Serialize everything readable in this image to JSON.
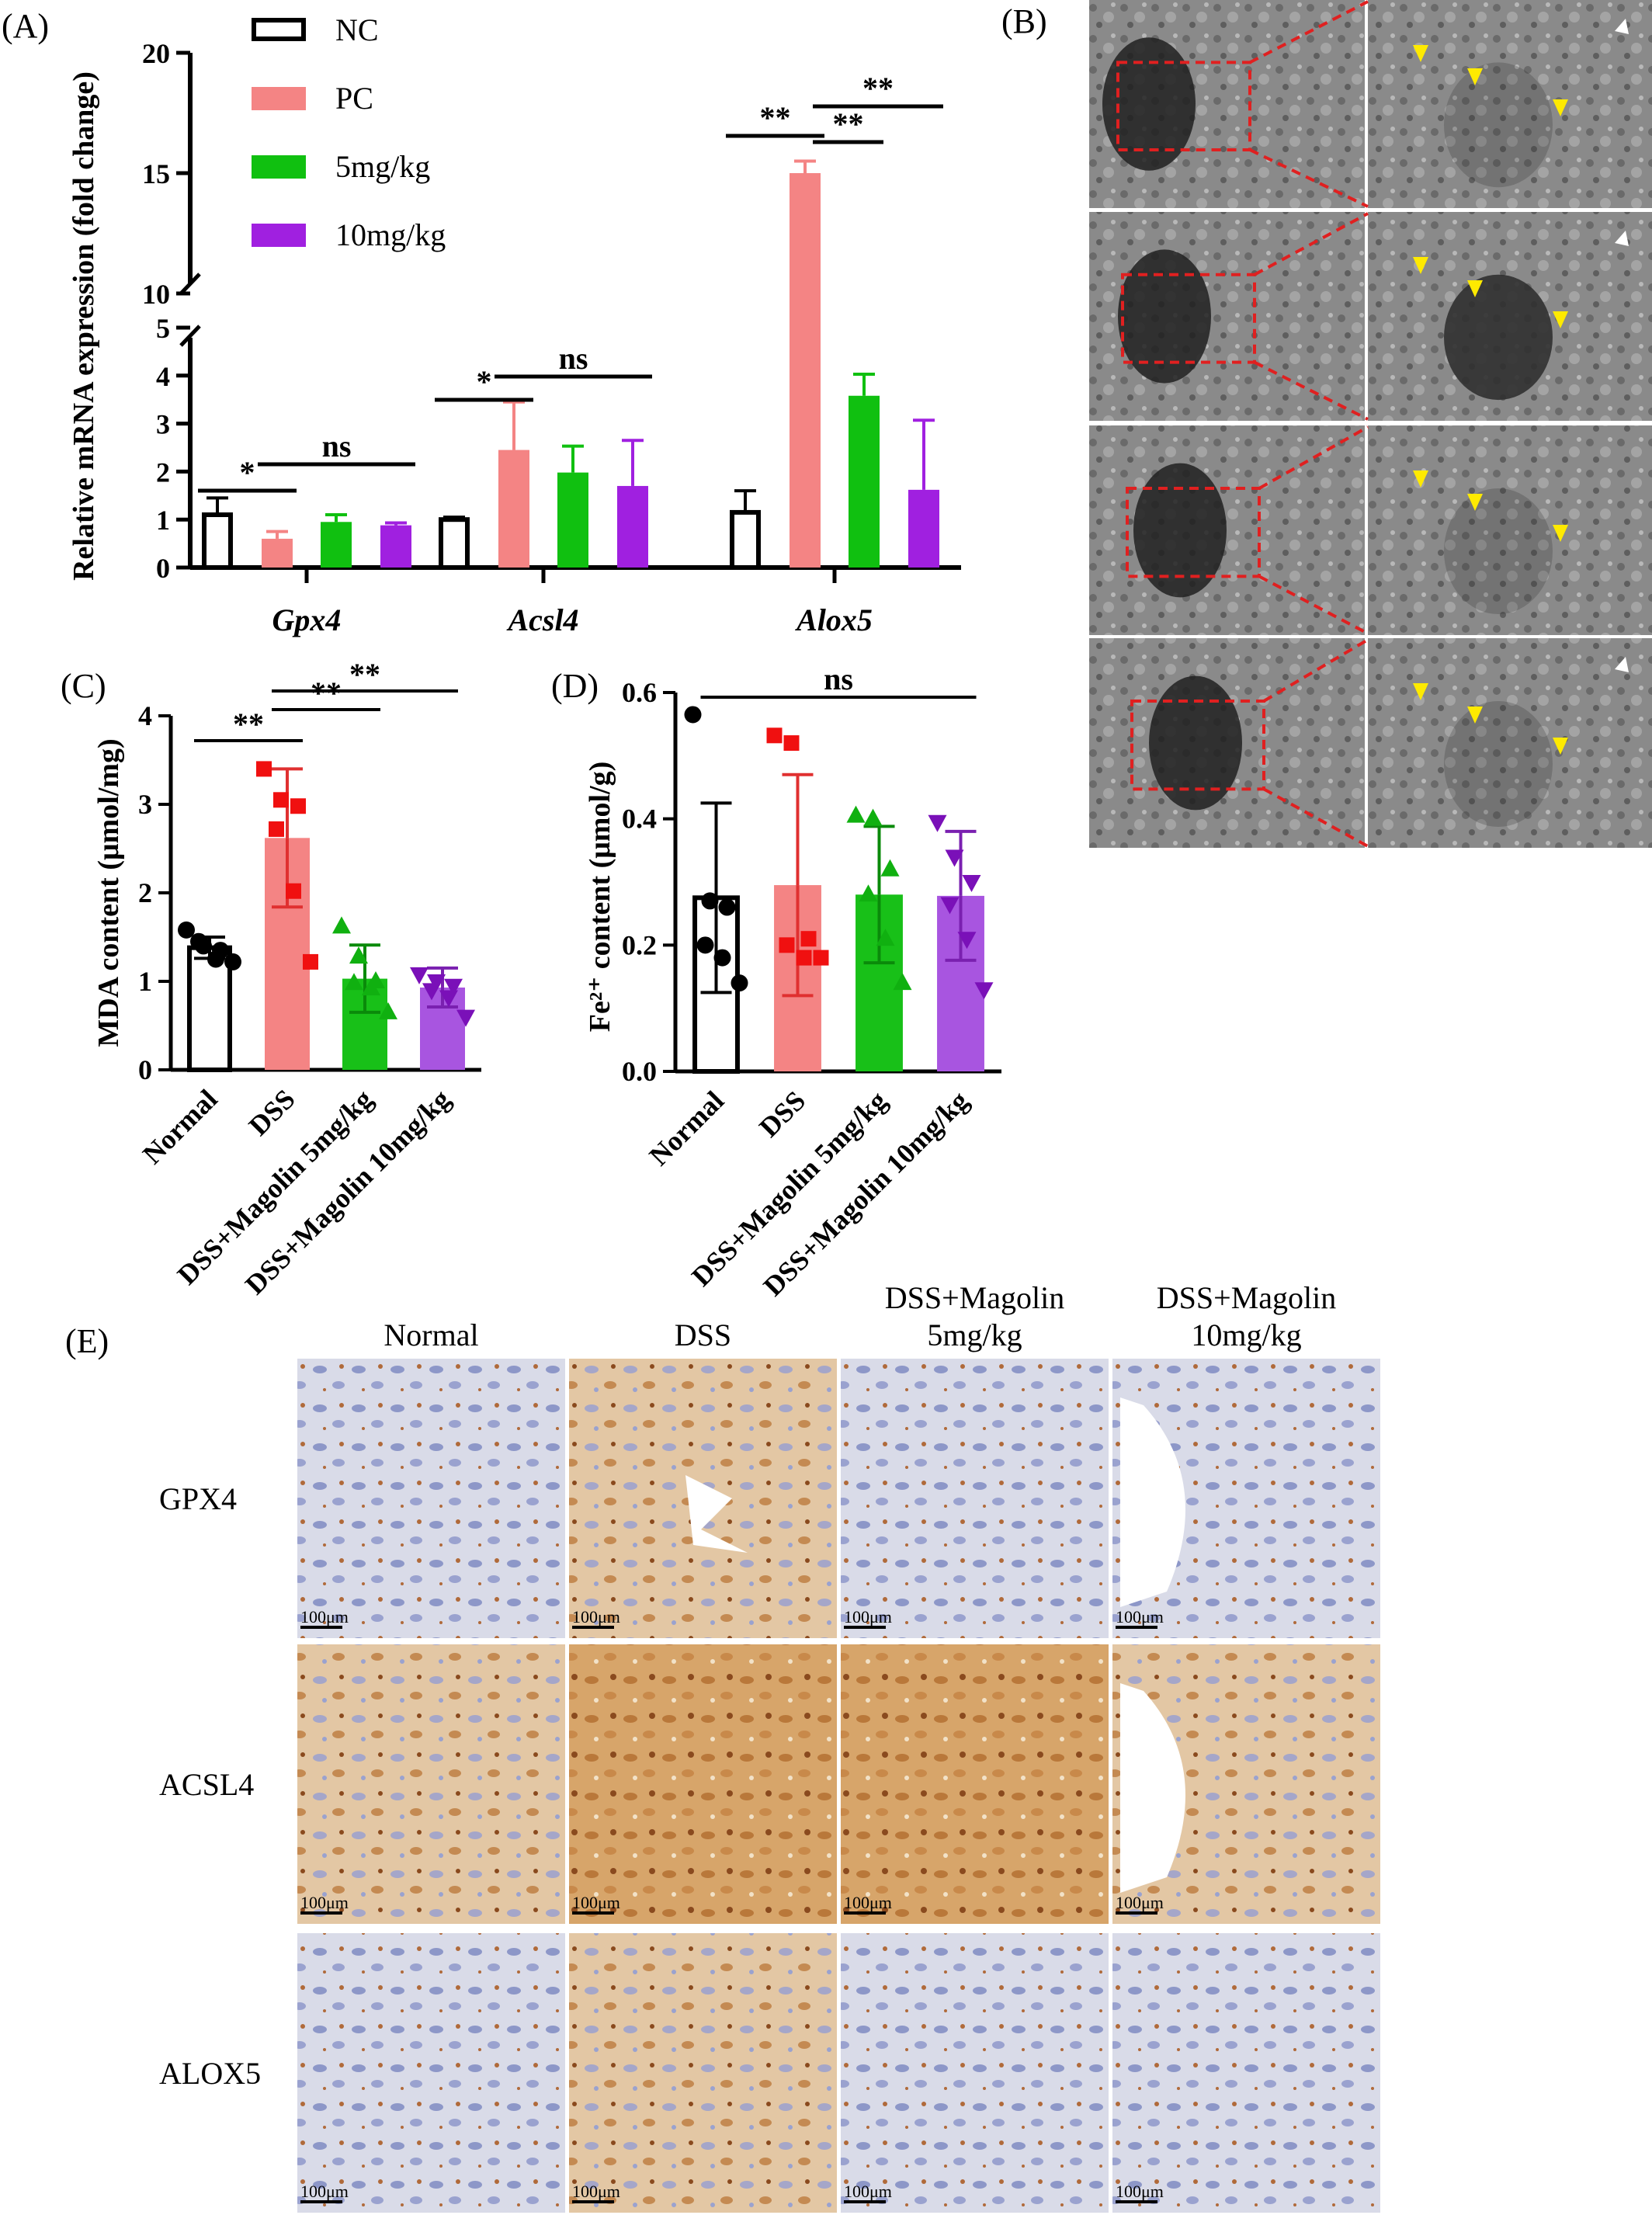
{
  "panels": {
    "A": "(A)",
    "B": "(B)",
    "C": "(C)",
    "D": "(D)",
    "E": "(E)"
  },
  "colors": {
    "nc": "#ffffff",
    "pc": "#f48484",
    "dose5": "#10c010",
    "dose10": "#a020e0",
    "normal": "#ffffff",
    "dss": "#f48484",
    "magolin5": "#18c018",
    "magolin10": "#a855e0",
    "roi": "#e02020",
    "arrow_yellow": "#ffea00",
    "arrow_white": "#ffffff"
  },
  "chart_data": [
    {
      "id": "A",
      "type": "bar",
      "ylabel": "Relative mRNA expression  (fold change)",
      "y_break": [
        5,
        10
      ],
      "ylim": [
        0,
        20
      ],
      "yticks_lower": [
        "0",
        "1",
        "2",
        "3",
        "4",
        "5"
      ],
      "yticks_upper": [
        "10",
        "15",
        "20"
      ],
      "categories": [
        "Gpx4",
        "Acsl4",
        "Alox5"
      ],
      "series": [
        {
          "name": "NC",
          "values": [
            1.1,
            1.0,
            1.15
          ],
          "errors": [
            0.35,
            0.05,
            0.45
          ]
        },
        {
          "name": "PC",
          "values": [
            0.6,
            2.45,
            15.0
          ],
          "errors": [
            0.15,
            1.0,
            0.5
          ]
        },
        {
          "name": "5mg/kg",
          "values": [
            0.95,
            1.98,
            3.58
          ],
          "errors": [
            0.15,
            0.55,
            0.45
          ]
        },
        {
          "name": "10mg/kg",
          "values": [
            0.88,
            1.7,
            1.62
          ],
          "errors": [
            0.05,
            0.95,
            1.45
          ]
        }
      ],
      "significance": [
        {
          "label": "*",
          "category": 0,
          "from": 0,
          "to": 1
        },
        {
          "label": "ns",
          "category": 0,
          "from": 1,
          "to": 3
        },
        {
          "label": "*",
          "category": 1,
          "from": 0,
          "to": 1
        },
        {
          "label": "ns",
          "category": 1,
          "from": 1,
          "to": 3
        },
        {
          "label": "**",
          "category": 2,
          "from": 0,
          "to": 1
        },
        {
          "label": "**",
          "category": 2,
          "from": 1,
          "to": 2
        },
        {
          "label": "**",
          "category": 2,
          "from": 1,
          "to": 3
        }
      ]
    },
    {
      "id": "C",
      "type": "bar",
      "ylabel": "MDA content (μmol/mg)",
      "ylim": [
        0,
        4
      ],
      "yticks": [
        "0",
        "1",
        "2",
        "3",
        "4"
      ],
      "categories": [
        "Normal",
        "DSS",
        "DSS+Magolin 5mg/kg",
        "DSS+Magolin 10mg/kg"
      ],
      "values": [
        1.38,
        2.62,
        1.03,
        0.93
      ],
      "errors": [
        0.12,
        0.78,
        0.38,
        0.22
      ],
      "points": [
        [
          1.58,
          1.4,
          1.35,
          1.45,
          1.25,
          1.22
        ],
        [
          3.4,
          3.05,
          2.98,
          2.72,
          2.02,
          1.22
        ],
        [
          1.62,
          1.28,
          1.0,
          0.98,
          0.92,
          0.65
        ],
        [
          1.08,
          1.0,
          0.95,
          0.9,
          0.82,
          0.6
        ]
      ],
      "significance": [
        {
          "label": "**",
          "from": 0,
          "to": 1
        },
        {
          "label": "**",
          "from": 1,
          "to": 2
        },
        {
          "label": "**",
          "from": 1,
          "to": 3
        }
      ]
    },
    {
      "id": "D",
      "type": "bar",
      "ylabel": "Fe²⁺ content  (μmol/g)",
      "ylim": [
        0,
        0.6
      ],
      "yticks": [
        "0.0",
        "0.2",
        "0.4",
        "0.6"
      ],
      "categories": [
        "Normal",
        "DSS",
        "DSS+Magolin 5mg/kg",
        "DSS+Magolin 10mg/kg"
      ],
      "values": [
        0.275,
        0.295,
        0.28,
        0.278
      ],
      "errors": [
        0.15,
        0.175,
        0.108,
        0.102
      ],
      "points": [
        [
          0.565,
          0.27,
          0.26,
          0.2,
          0.18,
          0.14
        ],
        [
          0.532,
          0.52,
          0.21,
          0.2,
          0.18,
          0.18
        ],
        [
          0.405,
          0.4,
          0.32,
          0.28,
          0.21,
          0.14
        ],
        [
          0.395,
          0.34,
          0.3,
          0.265,
          0.21,
          0.13
        ]
      ],
      "significance": [
        {
          "label": "ns",
          "from": 0,
          "to": 3
        }
      ]
    }
  ],
  "ihc": {
    "columns": [
      "Normal",
      "DSS",
      "DSS+Magolin\n5mg/kg",
      "DSS+Magolin\n10mg/kg"
    ],
    "rows": [
      "GPX4",
      "ACSL4",
      "ALOX5"
    ],
    "scalebar": "100μm"
  }
}
